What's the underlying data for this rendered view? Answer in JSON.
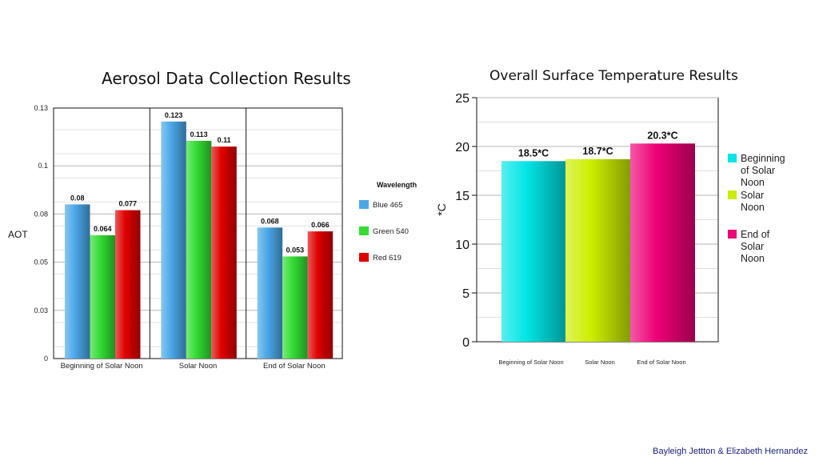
{
  "footer": {
    "credit": "Bayleigh Jettton & Elizabeth Hernandez"
  },
  "chart_data": [
    {
      "type": "bar",
      "title": "Aerosol Data Collection Results",
      "ylabel": "AOT",
      "xlabel": "",
      "categories": [
        "Beginning of Solar Noon",
        "Solar Noon",
        "End of Solar Noon"
      ],
      "series": [
        {
          "name": "Blue 465",
          "values": [
            0.08,
            0.123,
            0.068
          ],
          "color": "#4aa8e8"
        },
        {
          "name": "Green 540",
          "values": [
            0.064,
            0.113,
            0.053
          ],
          "color": "#33dd33"
        },
        {
          "name": "Red 619",
          "values": [
            0.077,
            0.11,
            0.066
          ],
          "color": "#e00000"
        }
      ],
      "data_labels": [
        [
          "0.08",
          "0.064",
          "0.077"
        ],
        [
          "0.123",
          "0.113",
          "0.11"
        ],
        [
          "0.068",
          "0.053",
          "0.066"
        ]
      ],
      "yticks": [
        0,
        0.025,
        0.05,
        0.075,
        0.1,
        0.13
      ],
      "ytick_labels": [
        "0",
        "0.03",
        "0.05",
        "0.08",
        "0.1",
        "0.13"
      ],
      "ylim": [
        0,
        0.13
      ],
      "legend": {
        "title": "Wavelength",
        "position": "right"
      },
      "grid": true
    },
    {
      "type": "bar",
      "title": "Overall Surface Temperature Results",
      "ylabel": "*C",
      "xlabel": "",
      "categories": [
        "Beginning of Solar Noon",
        "Solar Noon",
        "End of Solar Noon"
      ],
      "legend_labels": [
        "Beginning of Solar Noon",
        "Solar Noon",
        "End of Solar Noon"
      ],
      "values": [
        18.5,
        18.7,
        20.3
      ],
      "data_labels": [
        "18.5*C",
        "18.7*C",
        "20.3*C"
      ],
      "colors": [
        "#00e5e5",
        "#ccee00",
        "#ee0077"
      ],
      "yticks": [
        0,
        5,
        10,
        15,
        20,
        25
      ],
      "ytick_labels": [
        "0",
        "5",
        "10",
        "15",
        "20",
        "25"
      ],
      "ylim": [
        0,
        25
      ],
      "legend": {
        "position": "right"
      },
      "grid": true
    }
  ]
}
